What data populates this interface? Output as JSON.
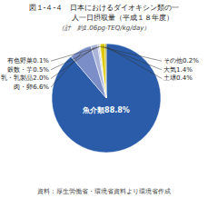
{
  "chart_data": {
    "type": "pie",
    "title": [
      "図１-４-４　日本におけるダイオキシン類の一",
      "　　　　　人一日摂取量（平成１８年度）"
    ],
    "subtitle": "（計　約1.06pg-TEQ/kg/day）",
    "source": "資料：厚生労働省・環境省資料より環境省作成",
    "categories": [
      "魚介類88.8%",
      "肉・卵6.6%",
      "乳・乳製品2.0%",
      "穀数・芋0.5%",
      "有色野菜0.1%",
      "その他0.2%",
      "大気1.4%",
      "土壌0.4%"
    ],
    "values": [
      88.8,
      6.6,
      2.0,
      0.5,
      0.1,
      0.2,
      1.4,
      0.4
    ],
    "colors": [
      "#2a5caa",
      "#7b8ec8",
      "#aab4d8",
      "#c0c8dc",
      "#d4d8e8",
      "#c8b400",
      "#dcc800",
      "#b8a400"
    ]
  }
}
